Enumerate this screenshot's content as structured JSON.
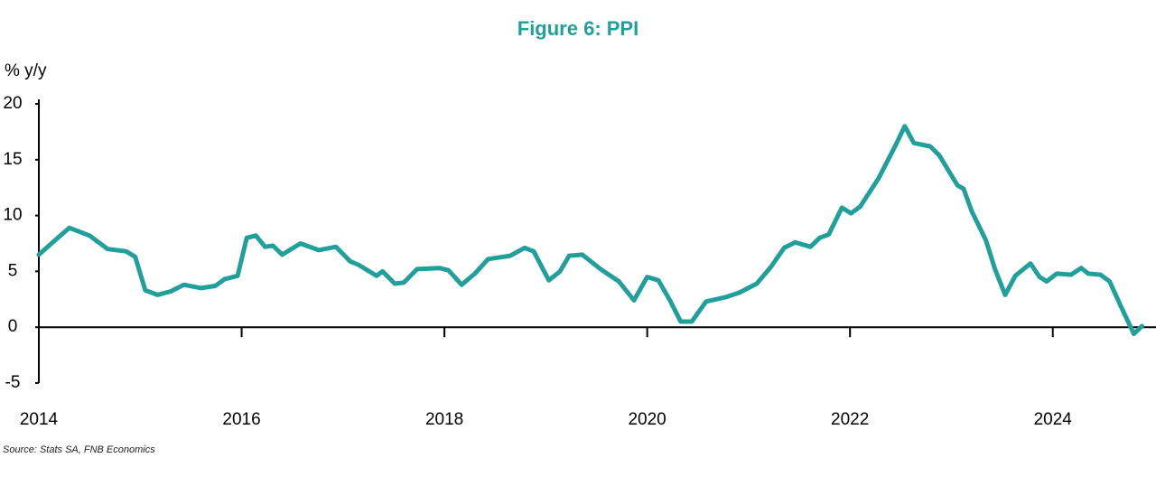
{
  "chart_data": {
    "type": "line",
    "title": "Figure 6: PPI",
    "y_label": "% y/y",
    "source": "Source: Stats SA, FNB Economics",
    "x": [
      2014.0,
      2014.15,
      2014.3,
      2014.5,
      2014.68,
      2014.86,
      2014.95,
      2015.05,
      2015.17,
      2015.3,
      2015.43,
      2015.6,
      2015.74,
      2015.83,
      2015.96,
      2016.05,
      2016.14,
      2016.23,
      2016.31,
      2016.4,
      2016.58,
      2016.76,
      2016.93,
      2017.07,
      2017.15,
      2017.33,
      2017.39,
      2017.51,
      2017.6,
      2017.73,
      2017.95,
      2018.04,
      2018.17,
      2018.3,
      2018.43,
      2018.65,
      2018.79,
      2018.88,
      2019.03,
      2019.14,
      2019.23,
      2019.36,
      2019.54,
      2019.72,
      2019.87,
      2020.0,
      2020.11,
      2020.23,
      2020.33,
      2020.44,
      2020.58,
      2020.78,
      2020.91,
      2021.08,
      2021.22,
      2021.35,
      2021.46,
      2021.61,
      2021.7,
      2021.79,
      2021.92,
      2022.01,
      2022.1,
      2022.28,
      2022.45,
      2022.54,
      2022.63,
      2022.79,
      2022.88,
      2023.06,
      2023.12,
      2023.2,
      2023.34,
      2023.43,
      2023.53,
      2023.63,
      2023.78,
      2023.87,
      2023.94,
      2024.04,
      2024.18,
      2024.28,
      2024.35,
      2024.47,
      2024.56,
      2024.68,
      2024.8,
      2024.88
    ],
    "series": [
      {
        "name": "PPI",
        "color": "#21a09b",
        "values": [
          6.5,
          7.7,
          8.9,
          8.2,
          7.0,
          6.8,
          6.3,
          3.3,
          2.9,
          3.2,
          3.8,
          3.5,
          3.7,
          4.3,
          4.6,
          8.0,
          8.2,
          7.2,
          7.3,
          6.5,
          7.5,
          6.9,
          7.2,
          5.9,
          5.6,
          4.6,
          5.0,
          3.9,
          4.0,
          5.2,
          5.3,
          5.1,
          3.8,
          4.8,
          6.1,
          6.4,
          7.1,
          6.8,
          4.2,
          5.0,
          6.4,
          6.5,
          5.2,
          4.1,
          2.4,
          4.5,
          4.2,
          2.3,
          0.5,
          0.5,
          2.3,
          2.7,
          3.1,
          3.9,
          5.4,
          7.1,
          7.6,
          7.2,
          8.0,
          8.3,
          10.7,
          10.2,
          10.8,
          13.3,
          16.3,
          18.0,
          16.5,
          16.2,
          15.4,
          12.7,
          12.4,
          10.4,
          7.8,
          5.2,
          2.9,
          4.6,
          5.7,
          4.5,
          4.1,
          4.8,
          4.7,
          5.3,
          4.8,
          4.7,
          4.1,
          1.7,
          -0.6,
          0.1
        ]
      }
    ],
    "xlim": [
      2014,
      2025
    ],
    "xticks": [
      2014,
      2016,
      2018,
      2020,
      2022,
      2024
    ],
    "ylim": [
      -5,
      20
    ],
    "yticks": [
      -5,
      0,
      5,
      10,
      15,
      20
    ]
  }
}
